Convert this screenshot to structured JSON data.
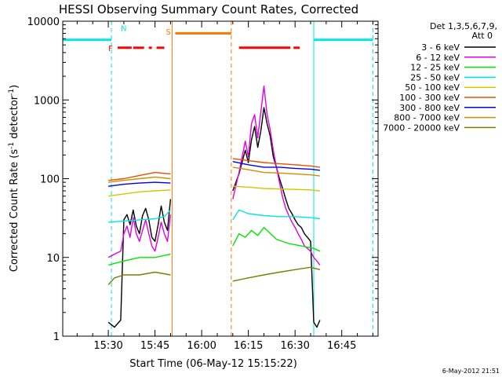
{
  "chart_data": {
    "type": "line",
    "title": "HESSI Observing Summary Count Rates, Corrected",
    "xlabel": "Start Time (06-May-12 15:15:22)",
    "ylabel_main": "Corrected Count Rate (s",
    "ylabel_sup1": "-1",
    "ylabel_mid": " detector",
    "ylabel_sup2": "-1",
    "ylabel_end": ")",
    "yscale": "log",
    "ylim": [
      1,
      10000
    ],
    "xlim": [
      "15:15:22",
      "16:56:40"
    ],
    "x_ticks": [
      "15:30",
      "15:45",
      "16:00",
      "16:15",
      "16:30",
      "16:45"
    ],
    "y_ticks": [
      "1",
      "10",
      "100",
      "1000",
      "10000"
    ],
    "date_stamp": "6-May-2012 21:51",
    "legend": {
      "placement": "top-right",
      "header_line1": "Det 1,3,5,6,7,9,",
      "header_line2": "Att 0",
      "entries": [
        {
          "label": "3 - 6 keV",
          "color": "#000000"
        },
        {
          "label": "6 - 12 keV",
          "color": "#e100e1"
        },
        {
          "label": "12 - 25 keV",
          "color": "#00e600"
        },
        {
          "label": "25 - 50 keV",
          "color": "#00e6e6"
        },
        {
          "label": "50 - 100 keV",
          "color": "#d2c800"
        },
        {
          "label": "100 - 300 keV",
          "color": "#e65000"
        },
        {
          "label": "300 - 800 keV",
          "color": "#0000e6"
        },
        {
          "label": "800 - 7000 keV",
          "color": "#d28c00"
        },
        {
          "label": "7000 - 20000 keV",
          "color": "#7d7d00"
        }
      ]
    },
    "flags": [
      {
        "label": "N",
        "color": "#00e6e6"
      },
      {
        "label": "F",
        "color": "#ff0000"
      },
      {
        "label": "S",
        "color": "#ff7800"
      }
    ],
    "series": [
      {
        "name": "3 - 6 keV",
        "color": "#000000",
        "segments": [
          {
            "x": [
              "15:30:00",
              "15:32:00",
              "15:34:00",
              "15:35:00",
              "15:36:00",
              "15:37:00",
              "15:38:00",
              "15:39:00",
              "15:40:00",
              "15:41:00",
              "15:42:00",
              "15:43:00",
              "15:44:00",
              "15:45:00",
              "15:46:00",
              "15:47:00",
              "15:48:00",
              "15:49:00",
              "15:50:00"
            ],
            "y": [
              1.5,
              1.3,
              1.6,
              30,
              35,
              26,
              40,
              25,
              20,
              34,
              42,
              30,
              18,
              16,
              26,
              45,
              28,
              22,
              55
            ]
          },
          {
            "x": [
              "16:10:00",
              "16:12:00",
              "16:14:00",
              "16:15:00",
              "16:16:00",
              "16:17:00",
              "16:18:00",
              "16:19:00",
              "16:20:00",
              "16:21:00",
              "16:22:00",
              "16:23:00",
              "16:24:00",
              "16:25:00",
              "16:26:00",
              "16:27:00",
              "16:28:00",
              "16:29:00",
              "16:30:00",
              "16:31:00",
              "16:32:00",
              "16:33:00",
              "16:34:00",
              "16:35:00",
              "16:36:00",
              "16:37:00",
              "16:38:00"
            ],
            "y": [
              70,
              115,
              230,
              160,
              310,
              460,
              250,
              400,
              800,
              500,
              350,
              190,
              140,
              100,
              75,
              55,
              42,
              36,
              30,
              26,
              24,
              20,
              18,
              16,
              1.5,
              1.3,
              1.6
            ]
          }
        ]
      },
      {
        "name": "6 - 12 keV",
        "color": "#e100e1",
        "segments": [
          {
            "x": [
              "15:30:00",
              "15:32:00",
              "15:34:00",
              "15:35:00",
              "15:36:00",
              "15:37:00",
              "15:38:00",
              "15:39:00",
              "15:40:00",
              "15:41:00",
              "15:42:00",
              "15:43:00",
              "15:44:00",
              "15:45:00",
              "15:46:00",
              "15:47:00",
              "15:48:00",
              "15:49:00",
              "15:50:00"
            ],
            "y": [
              10,
              11,
              12,
              20,
              25,
              18,
              32,
              20,
              16,
              22,
              30,
              20,
              14,
              12,
              18,
              28,
              20,
              16,
              35
            ]
          },
          {
            "x": [
              "16:10:00",
              "16:12:00",
              "16:14:00",
              "16:15:00",
              "16:16:00",
              "16:17:00",
              "16:18:00",
              "16:19:00",
              "16:20:00",
              "16:21:00",
              "16:22:00",
              "16:23:00",
              "16:24:00",
              "16:25:00",
              "16:26:00",
              "16:27:00",
              "16:28:00",
              "16:29:00",
              "16:30:00",
              "16:31:00",
              "16:32:00",
              "16:33:00",
              "16:34:00",
              "16:35:00",
              "16:36:00",
              "16:37:00",
              "16:38:00"
            ],
            "y": [
              55,
              120,
              300,
              190,
              500,
              650,
              330,
              700,
              1500,
              650,
              420,
              230,
              140,
              90,
              58,
              42,
              34,
              28,
              24,
              20,
              17,
              14,
              13,
              12,
              10,
              9,
              8
            ]
          }
        ]
      },
      {
        "name": "12 - 25 keV",
        "color": "#00e600",
        "segments": [
          {
            "x": [
              "15:30:00",
              "15:35:00",
              "15:40:00",
              "15:45:00",
              "15:50:00"
            ],
            "y": [
              8,
              9,
              10,
              10,
              11
            ]
          },
          {
            "x": [
              "16:10:00",
              "16:12:00",
              "16:14:00",
              "16:16:00",
              "16:18:00",
              "16:20:00",
              "16:24:00",
              "16:28:00",
              "16:32:00",
              "16:36:00",
              "16:38:00"
            ],
            "y": [
              14,
              20,
              18,
              22,
              19,
              24,
              17,
              15,
              14,
              13,
              12
            ]
          }
        ]
      },
      {
        "name": "25 - 50 keV",
        "color": "#00e6e6",
        "segments": [
          {
            "x": [
              "15:30:00",
              "15:35:00",
              "15:40:00",
              "15:45:00",
              "15:48:00",
              "15:50:00"
            ],
            "y": [
              28,
              29,
              30,
              31,
              33,
              40
            ]
          },
          {
            "x": [
              "16:10:00",
              "16:12:00",
              "16:15:00",
              "16:20:00",
              "16:25:00",
              "16:30:00",
              "16:35:00",
              "16:38:00"
            ],
            "y": [
              30,
              40,
              36,
              34,
              33,
              33,
              32,
              31
            ]
          }
        ]
      },
      {
        "name": "50 - 100 keV",
        "color": "#d2c800",
        "segments": [
          {
            "x": [
              "15:30:00",
              "15:35:00",
              "15:40:00",
              "15:45:00",
              "15:50:00"
            ],
            "y": [
              60,
              64,
              68,
              70,
              72
            ]
          },
          {
            "x": [
              "16:10:00",
              "16:15:00",
              "16:20:00",
              "16:25:00",
              "16:30:00",
              "16:35:00",
              "16:38:00"
            ],
            "y": [
              80,
              78,
              75,
              74,
              73,
              72,
              70
            ]
          }
        ]
      },
      {
        "name": "100 - 300 keV",
        "color": "#e65000",
        "segments": [
          {
            "x": [
              "15:30:00",
              "15:35:00",
              "15:40:00",
              "15:45:00",
              "15:50:00"
            ],
            "y": [
              95,
              100,
              110,
              120,
              115
            ]
          },
          {
            "x": [
              "16:10:00",
              "16:15:00",
              "16:20:00",
              "16:25:00",
              "16:30:00",
              "16:35:00",
              "16:38:00"
            ],
            "y": [
              180,
              170,
              160,
              155,
              150,
              145,
              140
            ]
          }
        ]
      },
      {
        "name": "300 - 800 keV",
        "color": "#0000e6",
        "segments": [
          {
            "x": [
              "15:30:00",
              "15:35:00",
              "15:40:00",
              "15:45:00",
              "15:50:00"
            ],
            "y": [
              80,
              85,
              88,
              90,
              88
            ]
          },
          {
            "x": [
              "16:10:00",
              "16:15:00",
              "16:20:00",
              "16:25:00",
              "16:30:00",
              "16:35:00",
              "16:38:00"
            ],
            "y": [
              165,
              150,
              140,
              140,
              135,
              132,
              128
            ]
          }
        ]
      },
      {
        "name": "800 - 7000 keV",
        "color": "#d28c00",
        "segments": [
          {
            "x": [
              "15:30:00",
              "15:35:00",
              "15:40:00",
              "15:45:00",
              "15:50:00"
            ],
            "y": [
              90,
              95,
              100,
              105,
              100
            ]
          },
          {
            "x": [
              "16:10:00",
              "16:15:00",
              "16:20:00",
              "16:25:00",
              "16:30:00",
              "16:35:00",
              "16:38:00"
            ],
            "y": [
              140,
              130,
              120,
              118,
              115,
              112,
              108
            ]
          }
        ]
      },
      {
        "name": "7000 - 20000 keV",
        "color": "#7d7d00",
        "segments": [
          {
            "x": [
              "15:30:00",
              "15:32:00",
              "15:35:00",
              "15:40:00",
              "15:45:00",
              "15:50:00"
            ],
            "y": [
              4.5,
              5.5,
              6,
              6,
              6.5,
              6
            ]
          },
          {
            "x": [
              "16:10:00",
              "16:15:00",
              "16:20:00",
              "16:25:00",
              "16:30:00",
              "16:35:00",
              "16:38:00"
            ],
            "y": [
              5,
              5.5,
              6,
              6.5,
              7,
              7.5,
              7
            ]
          }
        ]
      }
    ],
    "flag_bars": [
      {
        "flag": "N",
        "value": 5800,
        "segments": [
          [
            "15:15:22",
            "15:31:00"
          ],
          [
            "16:36:00",
            "16:55:00"
          ]
        ]
      },
      {
        "flag": "F",
        "value": 4600,
        "segments": [
          [
            "15:33:00",
            "15:37:30"
          ],
          [
            "15:38:00",
            "15:41:30"
          ],
          [
            "15:43:00",
            "15:44:00"
          ],
          [
            "15:45:30",
            "15:48:00"
          ],
          [
            "16:12:00",
            "16:28:30"
          ],
          [
            "16:29:30",
            "16:31:30"
          ]
        ]
      },
      {
        "flag": "S",
        "value": 7000,
        "segments": [
          [
            "15:51:30",
            "16:09:30"
          ]
        ]
      }
    ],
    "vertical_markers": [
      {
        "x": "15:15:22",
        "color": "#00e6e6",
        "style": "solid"
      },
      {
        "x": "15:31:00",
        "color": "#00e6e6",
        "style": "dashed"
      },
      {
        "x": "15:50:30",
        "color": "#ff7800",
        "style": "solid"
      },
      {
        "x": "16:09:30",
        "color": "#ff7800",
        "style": "dashed"
      },
      {
        "x": "16:36:00",
        "color": "#00e6e6",
        "style": "solid"
      },
      {
        "x": "16:55:00",
        "color": "#00e6e6",
        "style": "dashed"
      }
    ]
  }
}
